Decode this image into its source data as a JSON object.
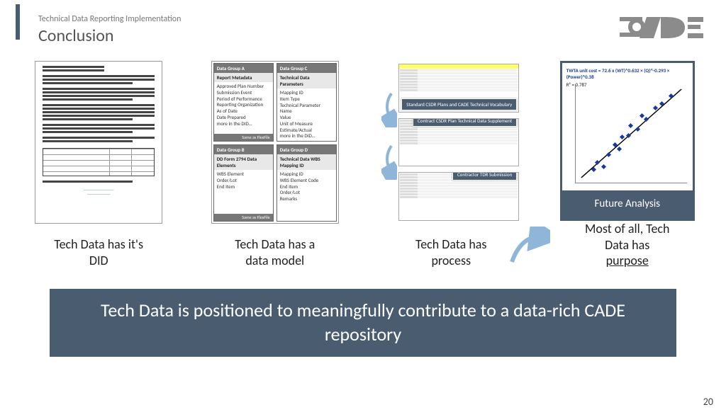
{
  "header": {
    "breadcrumb": "Technical Data Reporting Implementation",
    "title": "Conclusion"
  },
  "logo": {
    "text": "CADE",
    "color": "#8b8b8b"
  },
  "columns": [
    {
      "caption_line1": "Tech Data has it's",
      "caption_line2": "DID"
    },
    {
      "caption_line1": "Tech Data has a",
      "caption_line2": "data model"
    },
    {
      "caption_line1": "Tech Data has",
      "caption_line2": "process"
    },
    {
      "caption_line1": "Most of all, Tech",
      "caption_line2": "Data has",
      "caption_line3": "purpose"
    }
  ],
  "data_model": {
    "groups": [
      {
        "head": "Data Group A",
        "sub": "Report Metadata",
        "items": [
          "Approved Plan Number",
          "Submission Event",
          "Period of Performance",
          "Reporting Organization",
          "As of Date",
          "Date Prepared",
          "more in the DID…"
        ],
        "footer": "Same as FlexFile"
      },
      {
        "head": "Data Group C",
        "sub": "Technical Data Parameters",
        "items": [
          "Mapping ID",
          "Item Type",
          "Technical Parameter Name",
          "Value",
          "Unit of Measure",
          "Estimate/Actual",
          "more in the DID…"
        ],
        "footer": null
      },
      {
        "head": "Data Group B",
        "sub": "DD Form 2794 Data Elements",
        "items": [
          "WBS Element",
          "Order/Lot",
          "End Item"
        ],
        "footer": "Same as FlexFile"
      },
      {
        "head": "Data Group D",
        "sub": "Technical Data WBS Mapping ID",
        "items": [
          "Mapping ID",
          "WBS Element Code",
          "End Item",
          "Order/Lot",
          "Remarks"
        ],
        "footer": null
      }
    ]
  },
  "process": {
    "banners": [
      "Standard CSDR Plans and CADE Technical Vocabulary",
      "Contract CSDR Plan Technical Data Supplement",
      "Contractor TDR Submission"
    ]
  },
  "analysis": {
    "title": "TWTA unit cost = 72.6 x (WT)^0.632 × (Q)^-0.293 × (Power)^0.38",
    "r2_label": "R² = 0.787",
    "points": [
      {
        "x": 15,
        "y": 85
      },
      {
        "x": 18,
        "y": 78
      },
      {
        "x": 24,
        "y": 82
      },
      {
        "x": 28,
        "y": 70
      },
      {
        "x": 34,
        "y": 60
      },
      {
        "x": 38,
        "y": 64
      },
      {
        "x": 40,
        "y": 52
      },
      {
        "x": 46,
        "y": 50
      },
      {
        "x": 48,
        "y": 40
      },
      {
        "x": 54,
        "y": 44
      },
      {
        "x": 58,
        "y": 30
      },
      {
        "x": 62,
        "y": 34
      },
      {
        "x": 70,
        "y": 22
      },
      {
        "x": 76,
        "y": 18
      },
      {
        "x": 84,
        "y": 10
      }
    ],
    "label": "Future Analysis",
    "arrow_color": "#8fb5d9"
  },
  "banner": "Tech Data is positioned to meaningfully contribute to a data-rich CADE repository",
  "page_number": "20",
  "colors": {
    "accent": "#4a5c70",
    "logo_gray": "#8b8b8b",
    "arrow_blue": "#8fb5d9",
    "chart_point": "#1a3a9a"
  }
}
